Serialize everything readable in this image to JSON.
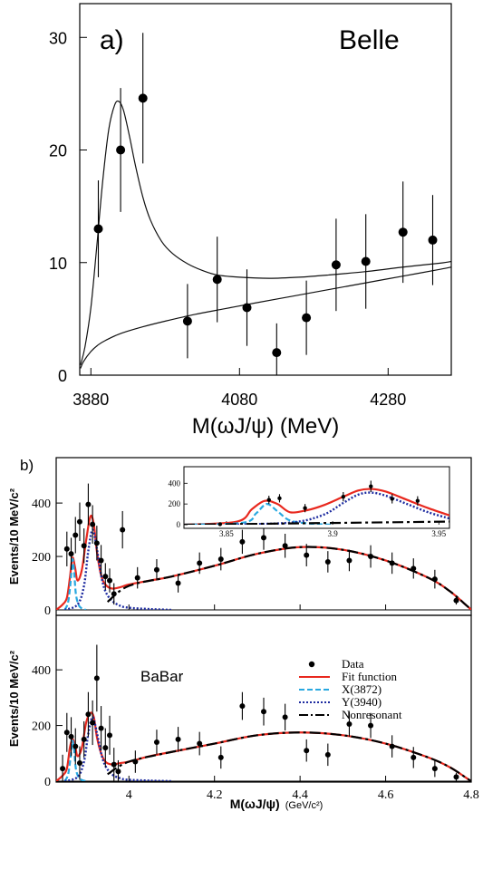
{
  "chart_data": [
    {
      "type": "scatter",
      "panel_label": "a)",
      "experiment": "Belle",
      "xlabel": "M(ωJ/ψ) (MeV)",
      "ylabel": "",
      "xlim": [
        3865,
        4365
      ],
      "ylim": [
        0,
        33
      ],
      "xticks": [
        3880,
        4080,
        4280
      ],
      "yticks": [
        0,
        10,
        20,
        30
      ],
      "points": [
        {
          "x": 3890,
          "y": 13.0,
          "err": 4.3
        },
        {
          "x": 3920,
          "y": 20.0,
          "err": 5.5
        },
        {
          "x": 3950,
          "y": 24.6,
          "err": 5.8
        },
        {
          "x": 4010,
          "y": 4.8,
          "err": 3.3
        },
        {
          "x": 4050,
          "y": 8.5,
          "err": 3.8
        },
        {
          "x": 4090,
          "y": 6.0,
          "err": 3.4
        },
        {
          "x": 4130,
          "y": 2.0,
          "err": 2.6
        },
        {
          "x": 4170,
          "y": 5.1,
          "err": 3.3
        },
        {
          "x": 4210,
          "y": 9.8,
          "err": 4.1
        },
        {
          "x": 4250,
          "y": 10.1,
          "err": 4.2
        },
        {
          "x": 4300,
          "y": 12.7,
          "err": 4.5
        },
        {
          "x": 4340,
          "y": 12.0,
          "err": 4.0
        }
      ],
      "series": [
        {
          "name": "",
          "kind": "total-fit",
          "x": [
            3866,
            3872,
            3880,
            3888,
            3896,
            3904,
            3912,
            3918,
            3924,
            3932,
            3940,
            3950,
            3960,
            3975,
            3990,
            4010,
            4030,
            4050,
            4080,
            4120,
            4160,
            4200,
            4250,
            4300,
            4350,
            4365
          ],
          "y": [
            0.9,
            2.5,
            6.0,
            11.5,
            17.3,
            21.8,
            24.0,
            24.3,
            23.5,
            21.2,
            18.6,
            15.8,
            13.8,
            11.9,
            10.8,
            9.9,
            9.3,
            8.9,
            8.7,
            8.6,
            8.7,
            8.9,
            9.2,
            9.6,
            9.95,
            10.1
          ]
        },
        {
          "name": "",
          "kind": "background",
          "x": [
            3866,
            3870,
            3880,
            3890,
            3900,
            3920,
            3950,
            3980,
            4020,
            4060,
            4100,
            4150,
            4200,
            4250,
            4300,
            4350,
            4365
          ],
          "y": [
            0.6,
            1.2,
            2.1,
            2.7,
            3.1,
            3.7,
            4.3,
            4.8,
            5.4,
            5.9,
            6.4,
            7.0,
            7.6,
            8.2,
            8.8,
            9.4,
            9.6
          ]
        }
      ]
    },
    {
      "type": "scatter",
      "panel_label": "b)",
      "subpanel": "upper",
      "ylabel": "Events/10 MeV/c²",
      "xlim": [
        3.83,
        4.8
      ],
      "ylim": [
        0,
        570
      ],
      "yticks": [
        0,
        200,
        400
      ],
      "xticks": [
        4,
        4.2,
        4.4,
        4.6,
        4.8
      ],
      "xlabel": "M(ωJ/ψ)",
      "xunit": "(GeV/c²)",
      "points": [
        {
          "x": 3.855,
          "y": 228,
          "err": 65
        },
        {
          "x": 3.865,
          "y": 210,
          "err": 60
        },
        {
          "x": 3.875,
          "y": 280,
          "err": 68
        },
        {
          "x": 3.885,
          "y": 330,
          "err": 72
        },
        {
          "x": 3.895,
          "y": 240,
          "err": 65
        },
        {
          "x": 3.905,
          "y": 395,
          "err": 78
        },
        {
          "x": 3.915,
          "y": 320,
          "err": 72
        },
        {
          "x": 3.925,
          "y": 250,
          "err": 65
        },
        {
          "x": 3.935,
          "y": 185,
          "err": 58
        },
        {
          "x": 3.945,
          "y": 125,
          "err": 50
        },
        {
          "x": 3.955,
          "y": 110,
          "err": 45
        },
        {
          "x": 3.965,
          "y": 60,
          "err": 40
        },
        {
          "x": 3.985,
          "y": 300,
          "err": 70
        },
        {
          "x": 4.02,
          "y": 120,
          "err": 40
        },
        {
          "x": 4.065,
          "y": 150,
          "err": 40
        },
        {
          "x": 4.115,
          "y": 100,
          "err": 35
        },
        {
          "x": 4.165,
          "y": 175,
          "err": 40
        },
        {
          "x": 4.215,
          "y": 190,
          "err": 42
        },
        {
          "x": 4.265,
          "y": 255,
          "err": 45
        },
        {
          "x": 4.315,
          "y": 270,
          "err": 45
        },
        {
          "x": 4.365,
          "y": 240,
          "err": 45
        },
        {
          "x": 4.415,
          "y": 205,
          "err": 42
        },
        {
          "x": 4.465,
          "y": 180,
          "err": 40
        },
        {
          "x": 4.515,
          "y": 185,
          "err": 40
        },
        {
          "x": 4.565,
          "y": 200,
          "err": 42
        },
        {
          "x": 4.615,
          "y": 175,
          "err": 40
        },
        {
          "x": 4.665,
          "y": 155,
          "err": 38
        },
        {
          "x": 4.715,
          "y": 115,
          "err": 35
        },
        {
          "x": 4.765,
          "y": 35,
          "err": 15
        }
      ],
      "series": [
        {
          "name": "",
          "kind": "fit",
          "color": "#e8281e",
          "x": [
            3.83,
            3.845,
            3.855,
            3.862,
            3.868,
            3.874,
            3.88,
            3.89,
            3.9,
            3.91,
            3.918,
            3.925,
            3.935,
            3.945,
            3.96,
            3.98,
            4.0,
            4.05,
            4.1,
            4.2,
            4.3,
            4.4,
            4.5,
            4.6,
            4.7,
            4.75,
            4.79,
            4.8
          ],
          "y": [
            0,
            20,
            45,
            120,
            195,
            160,
            110,
            150,
            260,
            350,
            320,
            220,
            130,
            95,
            80,
            85,
            95,
            110,
            125,
            165,
            210,
            235,
            225,
            185,
            120,
            70,
            15,
            0
          ]
        },
        {
          "name": "",
          "kind": "X(3872)",
          "color": "#28a8e0",
          "x": [
            3.85,
            3.858,
            3.864,
            3.868,
            3.872,
            3.876,
            3.882,
            3.89,
            3.9
          ],
          "y": [
            0,
            30,
            110,
            190,
            140,
            60,
            20,
            5,
            0
          ]
        },
        {
          "name": "",
          "kind": "Y(3940)",
          "color": "#1e2ca0",
          "x": [
            3.85,
            3.88,
            3.895,
            3.905,
            3.915,
            3.925,
            3.935,
            3.945,
            3.96,
            3.98,
            4.0,
            4.05,
            4.1
          ],
          "y": [
            0,
            20,
            90,
            220,
            300,
            230,
            130,
            70,
            35,
            15,
            8,
            3,
            0
          ]
        },
        {
          "name": "",
          "kind": "nonresonant",
          "color": "#000000",
          "x": [
            3.95,
            4.0,
            4.1,
            4.2,
            4.3,
            4.4,
            4.5,
            4.6,
            4.7,
            4.75,
            4.79,
            4.8
          ],
          "y": [
            30,
            90,
            125,
            165,
            210,
            235,
            225,
            185,
            120,
            70,
            15,
            0
          ]
        }
      ],
      "inset": {
        "xlim": [
          3.83,
          3.955
        ],
        "ylim": [
          0,
          560
        ],
        "yticks": [
          0,
          200,
          400
        ],
        "xticks": [
          3.85,
          3.9,
          3.95
        ],
        "points": [
          {
            "x": 3.847,
            "y": 5,
            "err": 0
          },
          {
            "x": 3.87,
            "y": 240,
            "err": 40
          },
          {
            "x": 3.875,
            "y": 255,
            "err": 40
          },
          {
            "x": 3.887,
            "y": 160,
            "err": 40
          },
          {
            "x": 3.905,
            "y": 270,
            "err": 45
          },
          {
            "x": 3.918,
            "y": 370,
            "err": 55
          },
          {
            "x": 3.928,
            "y": 250,
            "err": 45
          },
          {
            "x": 3.94,
            "y": 230,
            "err": 45
          }
        ],
        "series": [
          {
            "kind": "fit",
            "color": "#e8281e",
            "x": [
              3.83,
              3.855,
              3.862,
              3.868,
              3.874,
              3.88,
              3.888,
              3.896,
              3.905,
              3.912,
              3.918,
              3.925,
              3.935,
              3.945,
              3.955
            ],
            "y": [
              0,
              30,
              150,
              230,
              200,
              120,
              140,
              190,
              270,
              330,
              345,
              320,
              240,
              160,
              90
            ]
          },
          {
            "kind": "X(3872)",
            "color": "#28a8e0",
            "x": [
              3.83,
              3.858,
              3.864,
              3.869,
              3.874,
              3.88,
              3.89,
              3.9
            ],
            "y": [
              0,
              20,
              110,
              200,
              130,
              40,
              10,
              0
            ]
          },
          {
            "kind": "Y(3940)",
            "color": "#1e2ca0",
            "x": [
              3.85,
              3.88,
              3.895,
              3.905,
              3.912,
              3.918,
              3.925,
              3.935,
              3.945,
              3.955
            ],
            "y": [
              0,
              20,
              90,
              210,
              290,
              310,
              280,
              200,
              120,
              60
            ]
          },
          {
            "kind": "nonresonant",
            "color": "#000000",
            "x": [
              3.83,
              3.955
            ],
            "y": [
              0,
              30
            ]
          }
        ]
      }
    },
    {
      "type": "scatter",
      "panel_label": "",
      "subpanel": "lower",
      "experiment": "BaBar",
      "ylabel": "Events/10 MeV/c²",
      "xlim": [
        3.83,
        4.8
      ],
      "ylim": [
        0,
        560
      ],
      "yticks": [
        0,
        200,
        400
      ],
      "xticks": [
        4,
        4.2,
        4.4,
        4.6,
        4.8
      ],
      "xlabel": "M(ωJ/ψ)",
      "xunit": "(GeV/c²)",
      "legend": [
        "Data",
        "Fit function",
        "X(3872)",
        "Y(3940)",
        "Nonresonant"
      ],
      "points": [
        {
          "x": 3.845,
          "y": 45,
          "err": 50
        },
        {
          "x": 3.855,
          "y": 175,
          "err": 70
        },
        {
          "x": 3.865,
          "y": 160,
          "err": 70
        },
        {
          "x": 3.875,
          "y": 125,
          "err": 65
        },
        {
          "x": 3.885,
          "y": 65,
          "err": 60
        },
        {
          "x": 3.895,
          "y": 150,
          "err": 65
        },
        {
          "x": 3.905,
          "y": 240,
          "err": 80
        },
        {
          "x": 3.915,
          "y": 210,
          "err": 80
        },
        {
          "x": 3.925,
          "y": 370,
          "err": 120
        },
        {
          "x": 3.935,
          "y": 190,
          "err": 80
        },
        {
          "x": 3.945,
          "y": 120,
          "err": 70
        },
        {
          "x": 3.955,
          "y": 165,
          "err": 70
        },
        {
          "x": 3.965,
          "y": 60,
          "err": 60
        },
        {
          "x": 3.975,
          "y": 35,
          "err": 40
        },
        {
          "x": 4.015,
          "y": 70,
          "err": 40
        },
        {
          "x": 4.065,
          "y": 140,
          "err": 45
        },
        {
          "x": 4.115,
          "y": 150,
          "err": 45
        },
        {
          "x": 4.165,
          "y": 135,
          "err": 42
        },
        {
          "x": 4.215,
          "y": 85,
          "err": 40
        },
        {
          "x": 4.265,
          "y": 270,
          "err": 50
        },
        {
          "x": 4.315,
          "y": 250,
          "err": 50
        },
        {
          "x": 4.365,
          "y": 230,
          "err": 48
        },
        {
          "x": 4.415,
          "y": 110,
          "err": 40
        },
        {
          "x": 4.465,
          "y": 95,
          "err": 40
        },
        {
          "x": 4.515,
          "y": 205,
          "err": 45
        },
        {
          "x": 4.565,
          "y": 200,
          "err": 45
        },
        {
          "x": 4.615,
          "y": 125,
          "err": 40
        },
        {
          "x": 4.665,
          "y": 85,
          "err": 38
        },
        {
          "x": 4.715,
          "y": 45,
          "err": 30
        },
        {
          "x": 4.765,
          "y": 15,
          "err": 15
        }
      ],
      "series": [
        {
          "name": "Fit function",
          "kind": "fit",
          "color": "#e8281e",
          "x": [
            3.83,
            3.845,
            3.855,
            3.862,
            3.868,
            3.874,
            3.88,
            3.89,
            3.9,
            3.91,
            3.918,
            3.925,
            3.935,
            3.945,
            3.96,
            3.98,
            4.0,
            4.05,
            4.1,
            4.2,
            4.3,
            4.4,
            4.5,
            4.6,
            4.7,
            4.75,
            4.79,
            4.8
          ],
          "y": [
            0,
            20,
            45,
            120,
            150,
            130,
            90,
            120,
            210,
            245,
            230,
            160,
            100,
            70,
            60,
            65,
            70,
            90,
            105,
            135,
            165,
            175,
            165,
            135,
            85,
            50,
            10,
            0
          ]
        },
        {
          "name": "X(3872)",
          "kind": "X(3872)",
          "color": "#28a8e0",
          "x": [
            3.85,
            3.858,
            3.864,
            3.868,
            3.872,
            3.876,
            3.882,
            3.89,
            3.9
          ],
          "y": [
            0,
            25,
            90,
            145,
            110,
            45,
            15,
            4,
            0
          ]
        },
        {
          "name": "Y(3940)",
          "kind": "Y(3940)",
          "color": "#1e2ca0",
          "x": [
            3.85,
            3.88,
            3.895,
            3.905,
            3.915,
            3.925,
            3.935,
            3.945,
            3.96,
            3.98,
            4.0,
            4.05,
            4.1
          ],
          "y": [
            0,
            15,
            70,
            170,
            230,
            175,
            100,
            55,
            25,
            10,
            5,
            2,
            0
          ]
        },
        {
          "name": "Nonresonant",
          "kind": "nonresonant",
          "color": "#000000",
          "x": [
            3.95,
            4.0,
            4.1,
            4.2,
            4.3,
            4.4,
            4.5,
            4.6,
            4.7,
            4.75,
            4.79,
            4.8
          ],
          "y": [
            25,
            70,
            105,
            135,
            165,
            175,
            165,
            135,
            85,
            50,
            10,
            0
          ]
        }
      ]
    }
  ]
}
